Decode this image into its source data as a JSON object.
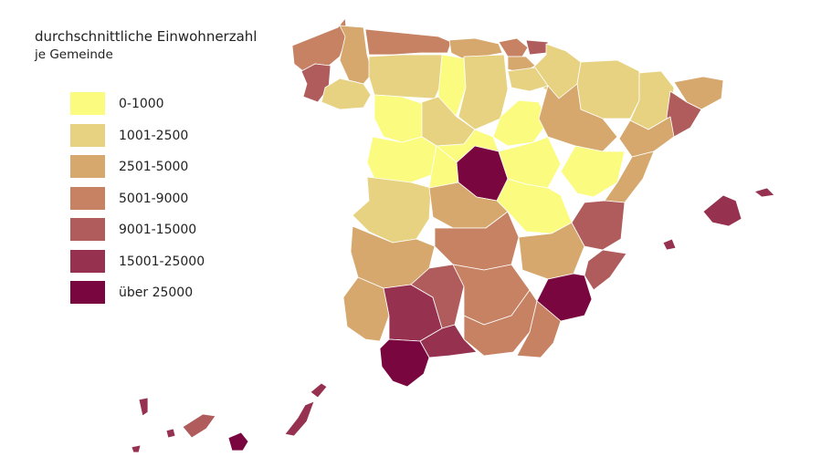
{
  "title": "durchschnittliche Einwohnerzahl",
  "subtitle": "je Gemeinde",
  "legend": [
    {
      "label": "0-1000",
      "color": "#fbfb80"
    },
    {
      "label": "1001-2500",
      "color": "#e7d282"
    },
    {
      "label": "2501-5000",
      "color": "#d6a86d"
    },
    {
      "label": "5001-9000",
      "color": "#c68263"
    },
    {
      "label": "9001-15000",
      "color": "#b05c5d"
    },
    {
      "label": "15001-25000",
      "color": "#963250"
    },
    {
      "label": "über 25000",
      "color": "#7a0640"
    }
  ]
}
